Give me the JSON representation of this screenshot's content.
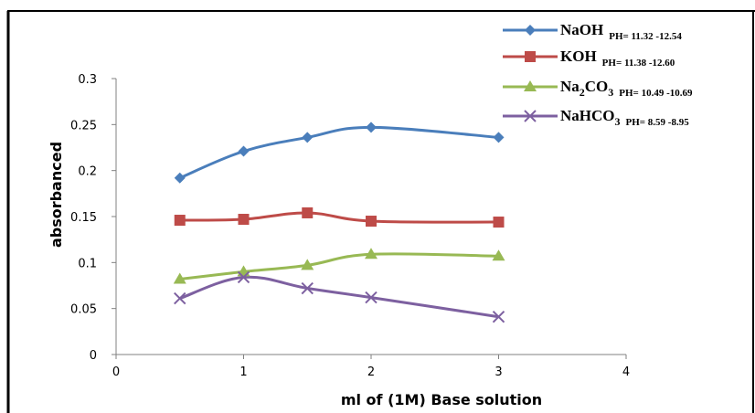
{
  "chart_data": {
    "type": "line",
    "xlabel": "ml of (1M) Base solution",
    "ylabel": "absorbanced",
    "xlim": [
      0,
      4
    ],
    "ylim": [
      0,
      0.3
    ],
    "x_ticks": [
      "0",
      "1",
      "2",
      "3",
      "4"
    ],
    "y_ticks": [
      "0",
      "0.05",
      "0.1",
      "0.15",
      "0.2",
      "0.25",
      "0.3"
    ],
    "x": [
      0.5,
      1,
      1.5,
      2,
      3
    ],
    "grid": false,
    "legend_position": "top-right",
    "series": [
      {
        "name": "NaOH",
        "name_parts": [
          "NaOH"
        ],
        "ph": "PH= 11.32 -12.54",
        "values": [
          0.192,
          0.221,
          0.236,
          0.247,
          0.236
        ],
        "color": "#4a7ebb",
        "marker": "diamond"
      },
      {
        "name": "KOH",
        "name_parts": [
          "KOH"
        ],
        "ph": "PH= 11.38 -12.60",
        "values": [
          0.146,
          0.147,
          0.154,
          0.145,
          0.144
        ],
        "color": "#be4b48",
        "marker": "square"
      },
      {
        "name": "Na2CO3",
        "name_parts": [
          "Na",
          "2",
          "CO",
          "3"
        ],
        "ph": "PH= 10.49 -10.69",
        "values": [
          0.082,
          0.09,
          0.097,
          0.109,
          0.107
        ],
        "color": "#98b954",
        "marker": "triangle"
      },
      {
        "name": "NaHCO3",
        "name_parts": [
          "NaHCO",
          "3"
        ],
        "ph": "PH= 8.59 -8.95",
        "values": [
          0.061,
          0.084,
          0.072,
          0.062,
          0.041
        ],
        "color": "#7d60a0",
        "marker": "x"
      }
    ]
  }
}
